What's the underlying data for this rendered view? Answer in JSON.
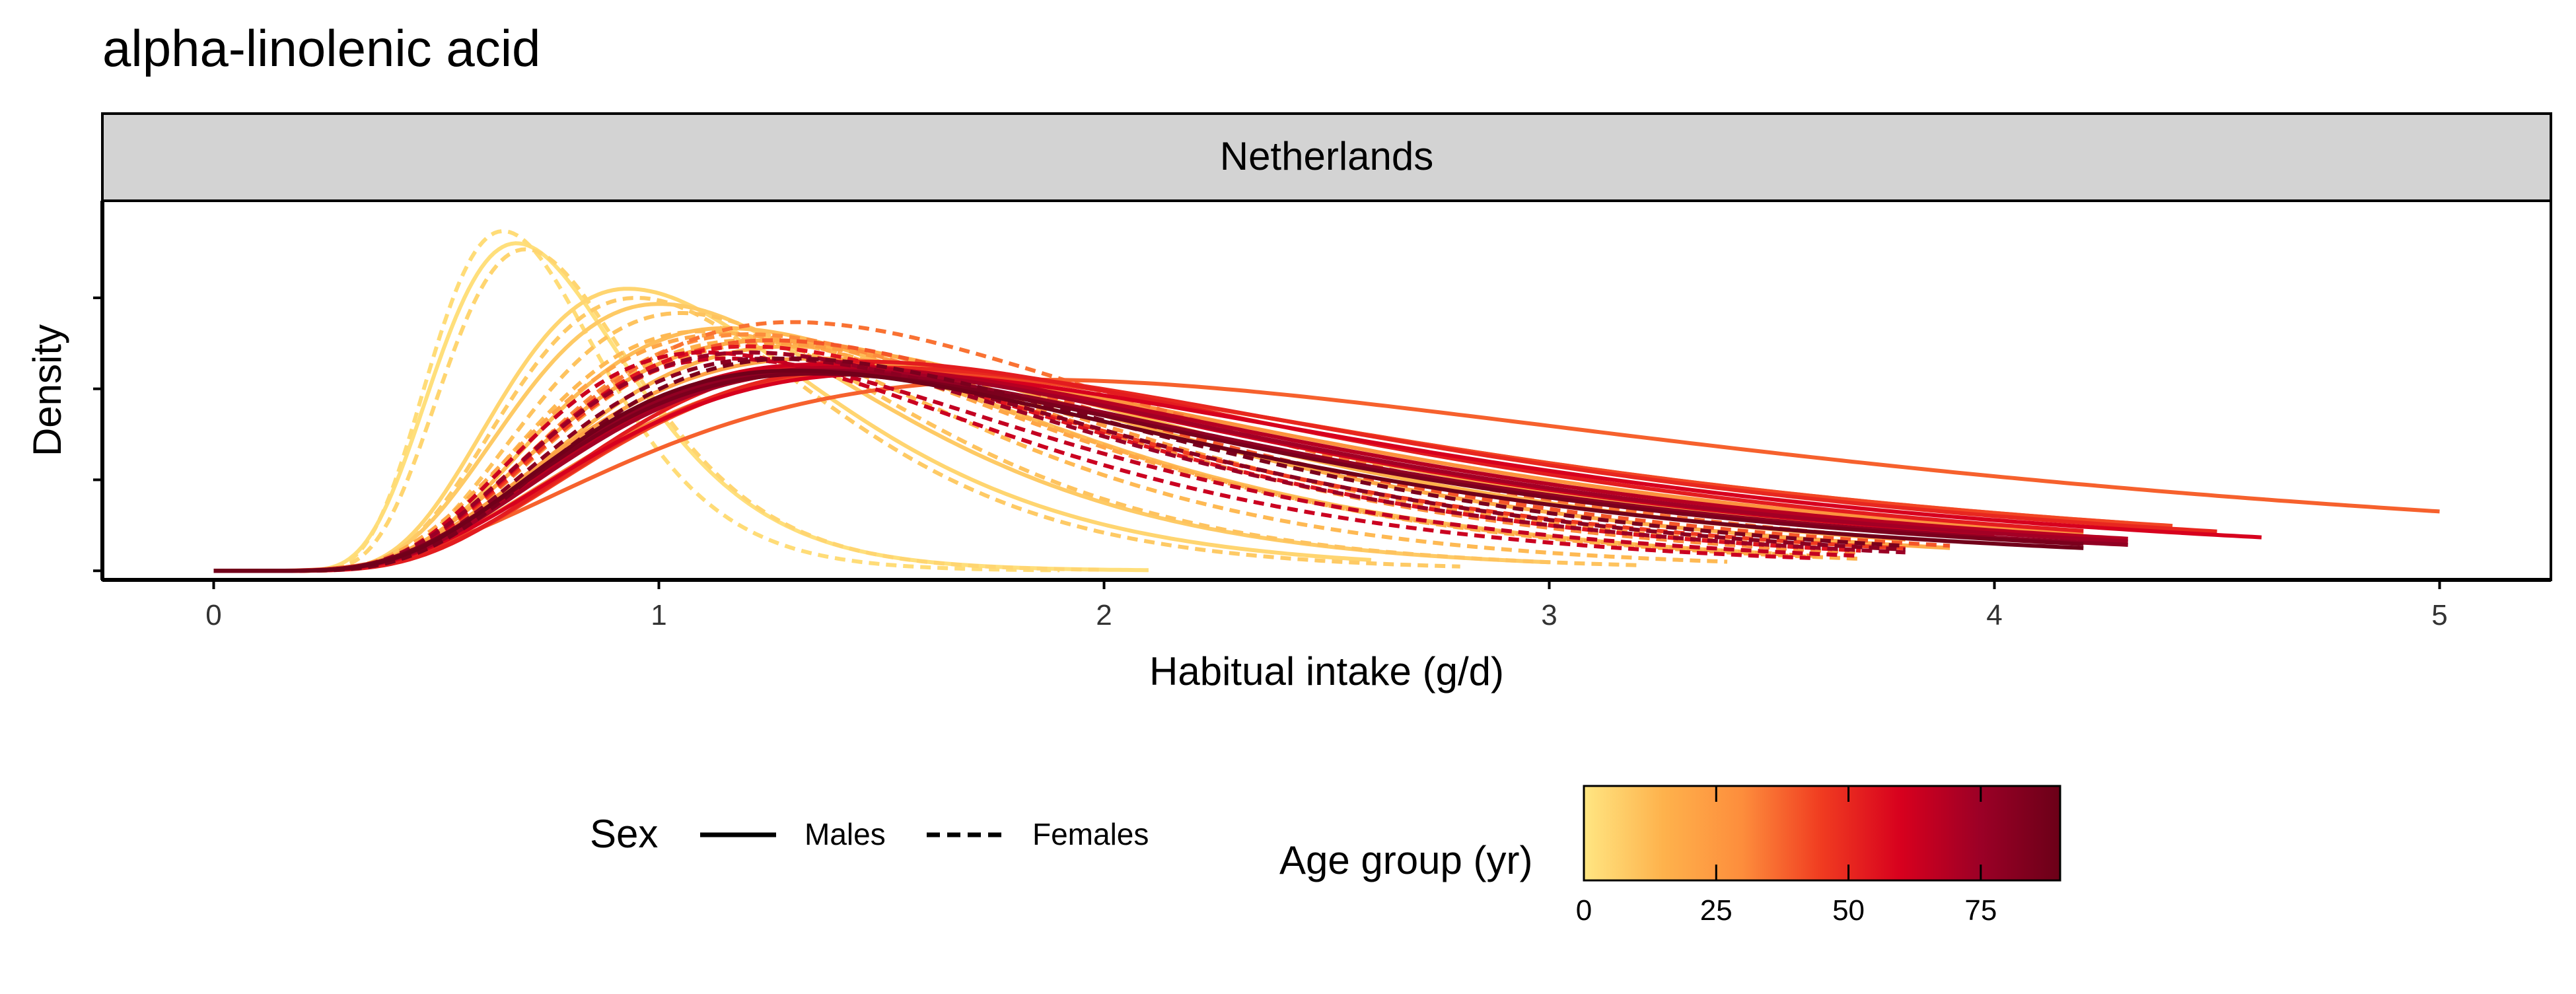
{
  "chart_data": {
    "type": "line",
    "title": "alpha-linolenic acid",
    "facet_label": "Netherlands",
    "xlabel": "Habitual intake (g/d)",
    "ylabel": "Density",
    "xlim": [
      -0.25,
      5.25
    ],
    "x_ticks": [
      0,
      1,
      2,
      3,
      4,
      5
    ],
    "x_tick_labels": [
      "0",
      "1",
      "2",
      "3",
      "4",
      "5"
    ],
    "ylim": [
      -0.03,
      1.22
    ],
    "y_ticks": [
      0,
      0.3,
      0.6,
      0.9
    ],
    "y_tick_labels": [
      "",
      "",
      "",
      ""
    ],
    "grid": false,
    "legend": {
      "position": "bottom",
      "sex_title": "Sex",
      "sex_items": [
        {
          "label": "Males",
          "linetype": "solid"
        },
        {
          "label": "Females",
          "linetype": "dashed"
        }
      ],
      "age_title": "Age group (yr)",
      "age_range": [
        0,
        90
      ],
      "age_ticks": [
        0,
        25,
        50,
        75
      ],
      "age_tick_labels": [
        "0",
        "25",
        "50",
        "75"
      ],
      "age_colors": [
        "#FFE682",
        "#FEB24C",
        "#FD8D3C",
        "#F03B20",
        "#D7001E",
        "#9B0026",
        "#6B0018"
      ]
    },
    "series": [
      {
        "sex": "Males",
        "age": 2,
        "peak": 0.68,
        "height": 1.08,
        "sl": 0.24,
        "sr": 0.4,
        "xmax": 2.1
      },
      {
        "sex": "Females",
        "age": 3,
        "peak": 0.65,
        "height": 1.12,
        "sl": 0.22,
        "sr": 0.36,
        "xmax": 1.9
      },
      {
        "sex": "Females",
        "age": 5,
        "peak": 0.7,
        "height": 1.06,
        "sl": 0.23,
        "sr": 0.38,
        "xmax": 2.0
      },
      {
        "sex": "Males",
        "age": 5,
        "peak": 0.93,
        "height": 0.93,
        "sl": 0.28,
        "sr": 0.55,
        "xmax": 2.6
      },
      {
        "sex": "Males",
        "age": 8,
        "peak": 1.0,
        "height": 0.88,
        "sl": 0.3,
        "sr": 0.58,
        "xmax": 3.0
      },
      {
        "sex": "Females",
        "age": 8,
        "peak": 0.95,
        "height": 0.9,
        "sl": 0.28,
        "sr": 0.5,
        "xmax": 2.8
      },
      {
        "sex": "Females",
        "age": 10,
        "peak": 1.05,
        "height": 0.85,
        "sl": 0.3,
        "sr": 0.55,
        "xmax": 3.2
      },
      {
        "sex": "Males",
        "age": 12,
        "peak": 1.15,
        "height": 0.8,
        "sl": 0.33,
        "sr": 0.7,
        "xmax": 3.5
      },
      {
        "sex": "Females",
        "age": 13,
        "peak": 1.1,
        "height": 0.79,
        "sl": 0.32,
        "sr": 0.62,
        "xmax": 3.4
      },
      {
        "sex": "Males",
        "age": 15,
        "peak": 1.3,
        "height": 0.74,
        "sl": 0.36,
        "sr": 0.8,
        "xmax": 3.8
      },
      {
        "sex": "Females",
        "age": 16,
        "peak": 1.2,
        "height": 0.76,
        "sl": 0.34,
        "sr": 0.66,
        "xmax": 3.7
      },
      {
        "sex": "Males",
        "age": 18,
        "peak": 1.25,
        "height": 0.76,
        "sl": 0.37,
        "sr": 0.78,
        "xmax": 3.9
      },
      {
        "sex": "Females",
        "age": 20,
        "peak": 1.15,
        "height": 0.78,
        "sl": 0.35,
        "sr": 0.7,
        "xmax": 3.6
      },
      {
        "sex": "Males",
        "age": 22,
        "peak": 1.35,
        "height": 0.7,
        "sl": 0.4,
        "sr": 0.85,
        "xmax": 4.0
      },
      {
        "sex": "Females",
        "age": 24,
        "peak": 1.25,
        "height": 0.75,
        "sl": 0.36,
        "sr": 0.72,
        "xmax": 3.6
      },
      {
        "sex": "Males",
        "age": 28,
        "peak": 1.4,
        "height": 0.68,
        "sl": 0.4,
        "sr": 0.9,
        "xmax": 4.2
      },
      {
        "sex": "Females",
        "age": 30,
        "peak": 1.2,
        "height": 0.78,
        "sl": 0.34,
        "sr": 0.72,
        "xmax": 3.7
      },
      {
        "sex": "Males",
        "age": 33,
        "peak": 1.5,
        "height": 0.66,
        "sl": 0.42,
        "sr": 0.95,
        "xmax": 4.3
      },
      {
        "sex": "Females",
        "age": 35,
        "peak": 1.3,
        "height": 0.82,
        "sl": 0.38,
        "sr": 0.78,
        "xmax": 3.8
      },
      {
        "sex": "Males",
        "age": 38,
        "peak": 1.85,
        "height": 0.63,
        "sl": 0.5,
        "sr": 1.0,
        "xmax": 5.0
      },
      {
        "sex": "Females",
        "age": 40,
        "peak": 1.25,
        "height": 0.76,
        "sl": 0.36,
        "sr": 0.8,
        "xmax": 3.9
      },
      {
        "sex": "Males",
        "age": 43,
        "peak": 1.5,
        "height": 0.66,
        "sl": 0.4,
        "sr": 0.95,
        "xmax": 4.4
      },
      {
        "sex": "Females",
        "age": 45,
        "peak": 1.2,
        "height": 0.72,
        "sl": 0.35,
        "sr": 0.8,
        "xmax": 3.8
      },
      {
        "sex": "Males",
        "age": 50,
        "peak": 1.5,
        "height": 0.67,
        "sl": 0.4,
        "sr": 0.92,
        "xmax": 4.5
      },
      {
        "sex": "Males",
        "age": 53,
        "peak": 1.45,
        "height": 0.69,
        "sl": 0.38,
        "sr": 0.88,
        "xmax": 4.2
      },
      {
        "sex": "Females",
        "age": 55,
        "peak": 1.2,
        "height": 0.74,
        "sl": 0.35,
        "sr": 0.75,
        "xmax": 3.7
      },
      {
        "sex": "Males",
        "age": 60,
        "peak": 1.5,
        "height": 0.65,
        "sl": 0.42,
        "sr": 0.9,
        "xmax": 4.6
      },
      {
        "sex": "Males",
        "age": 62,
        "peak": 1.35,
        "height": 0.68,
        "sl": 0.38,
        "sr": 0.88,
        "xmax": 4.0
      },
      {
        "sex": "Females",
        "age": 63,
        "peak": 1.1,
        "height": 0.72,
        "sl": 0.33,
        "sr": 0.72,
        "xmax": 3.6
      },
      {
        "sex": "Females",
        "age": 65,
        "peak": 1.15,
        "height": 0.7,
        "sl": 0.34,
        "sr": 0.74,
        "xmax": 3.7
      },
      {
        "sex": "Males",
        "age": 68,
        "peak": 1.4,
        "height": 0.67,
        "sl": 0.4,
        "sr": 0.88,
        "xmax": 4.3
      },
      {
        "sex": "Males",
        "age": 73,
        "peak": 1.4,
        "height": 0.66,
        "sl": 0.4,
        "sr": 0.86,
        "xmax": 4.3
      },
      {
        "sex": "Females",
        "age": 75,
        "peak": 1.2,
        "height": 0.72,
        "sl": 0.36,
        "sr": 0.76,
        "xmax": 3.8
      },
      {
        "sex": "Males",
        "age": 78,
        "peak": 1.35,
        "height": 0.66,
        "sl": 0.4,
        "sr": 0.86,
        "xmax": 4.3
      },
      {
        "sex": "Females",
        "age": 80,
        "peak": 1.25,
        "height": 0.7,
        "sl": 0.36,
        "sr": 0.76,
        "xmax": 3.8
      },
      {
        "sex": "Males",
        "age": 85,
        "peak": 1.35,
        "height": 0.65,
        "sl": 0.4,
        "sr": 0.85,
        "xmax": 4.2
      },
      {
        "sex": "Females",
        "age": 85,
        "peak": 1.3,
        "height": 0.7,
        "sl": 0.36,
        "sr": 0.76,
        "xmax": 3.8
      },
      {
        "sex": "Males",
        "age": 88,
        "peak": 1.3,
        "height": 0.66,
        "sl": 0.38,
        "sr": 0.84,
        "xmax": 4.2
      }
    ]
  }
}
